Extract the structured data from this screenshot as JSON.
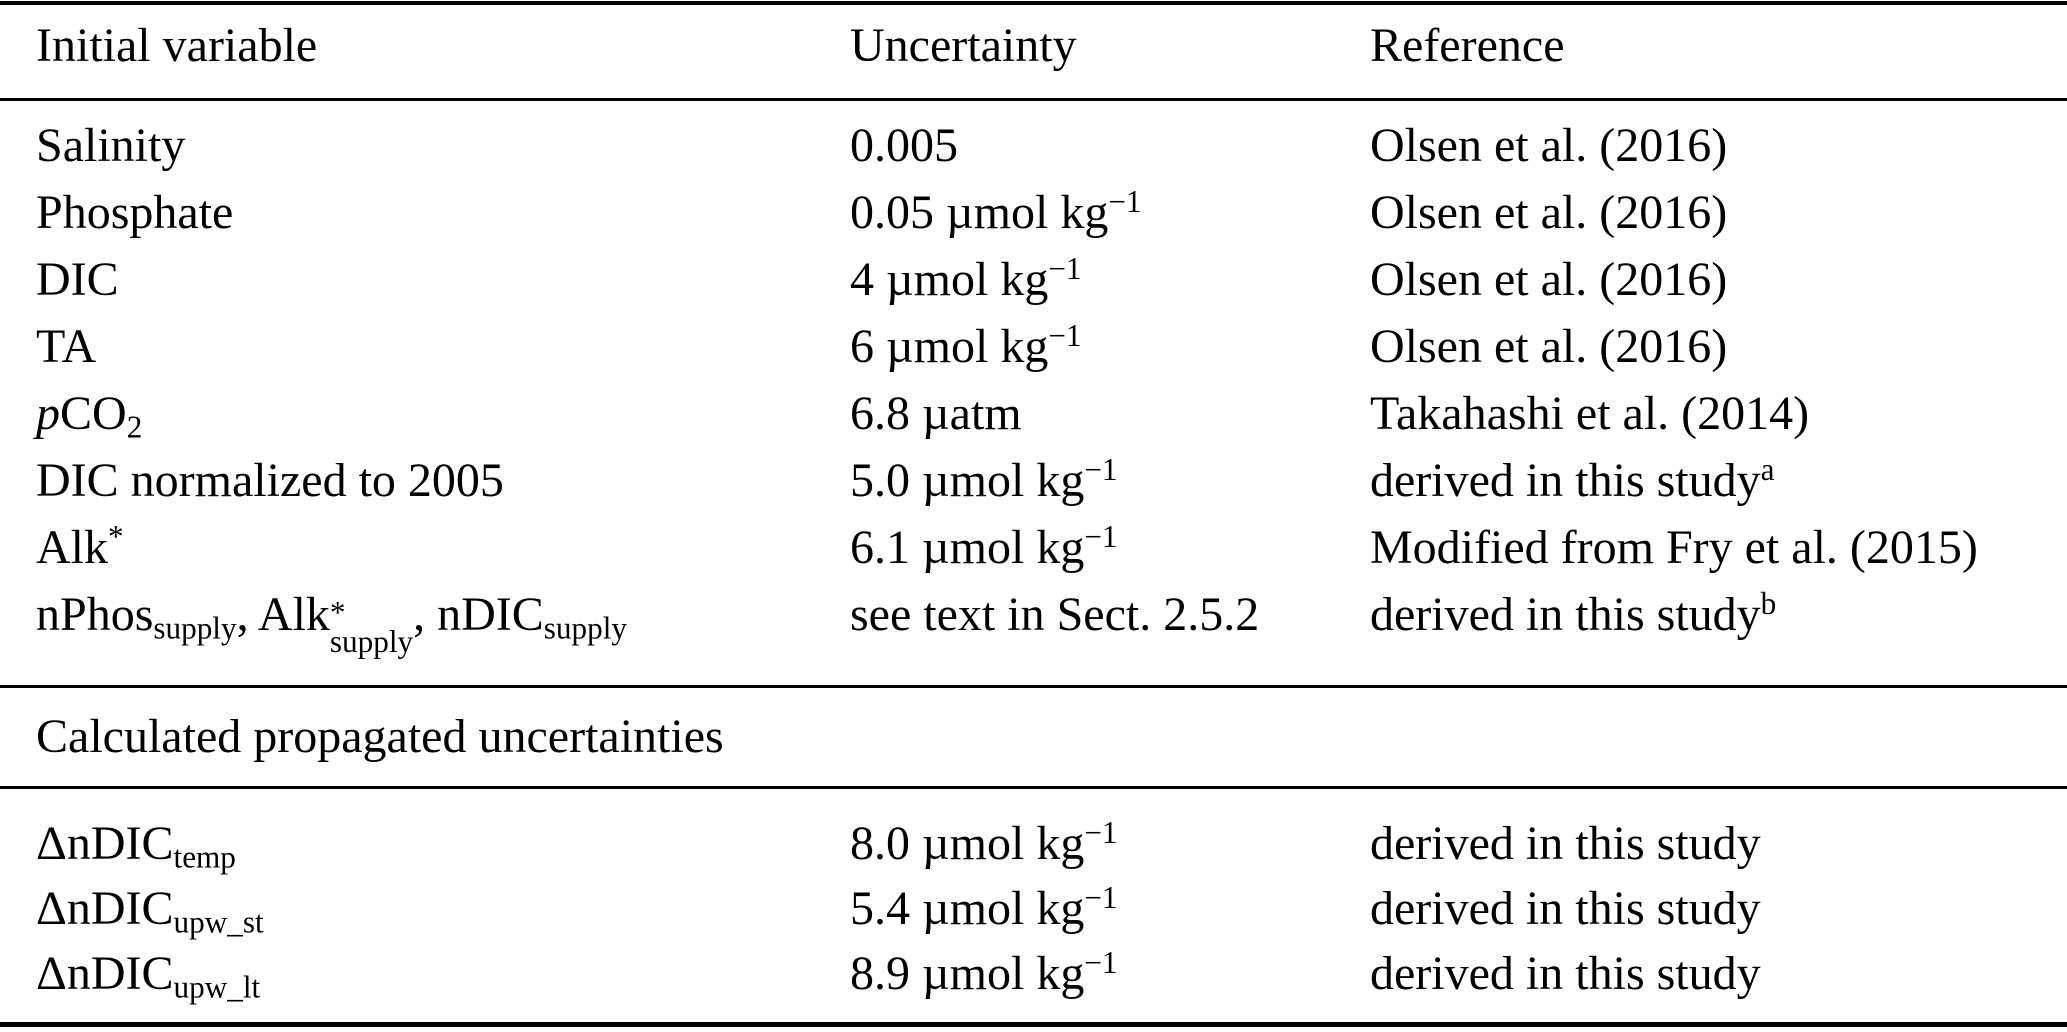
{
  "colors": {
    "background": "#ffffff",
    "text": "#000000",
    "rule": "#000000"
  },
  "table": {
    "columns": [
      {
        "label": "Initial variable"
      },
      {
        "label": "Uncertainty"
      },
      {
        "label": "Reference"
      }
    ],
    "sections": [
      {
        "name": "initial-variables",
        "header": null,
        "rows": [
          {
            "variable": [
              {
                "text": "Salinity"
              }
            ],
            "uncertainty": [
              {
                "text": "0.005"
              }
            ],
            "reference": [
              {
                "text": "Olsen et al. (2016)"
              }
            ]
          },
          {
            "variable": [
              {
                "text": "Phosphate"
              }
            ],
            "uncertainty": [
              {
                "text": "0.05 µmol kg"
              },
              {
                "text": "−1",
                "style": "sup"
              }
            ],
            "reference": [
              {
                "text": "Olsen et al. (2016)"
              }
            ]
          },
          {
            "variable": [
              {
                "text": "DIC"
              }
            ],
            "uncertainty": [
              {
                "text": "4 µmol kg"
              },
              {
                "text": "−1",
                "style": "sup"
              }
            ],
            "reference": [
              {
                "text": "Olsen et al. (2016)"
              }
            ]
          },
          {
            "variable": [
              {
                "text": "TA"
              }
            ],
            "uncertainty": [
              {
                "text": "6 µmol kg"
              },
              {
                "text": "−1",
                "style": "sup"
              }
            ],
            "reference": [
              {
                "text": "Olsen et al. (2016)"
              }
            ]
          },
          {
            "variable": [
              {
                "text": "p",
                "style": "italic"
              },
              {
                "text": "CO"
              },
              {
                "text": "2",
                "style": "sub"
              }
            ],
            "uncertainty": [
              {
                "text": "6.8 µatm"
              }
            ],
            "reference": [
              {
                "text": "Takahashi et al. (2014)"
              }
            ]
          },
          {
            "variable": [
              {
                "text": "DIC normalized to 2005"
              }
            ],
            "uncertainty": [
              {
                "text": "5.0 µmol kg"
              },
              {
                "text": "−1",
                "style": "sup"
              }
            ],
            "reference": [
              {
                "text": "derived in this study"
              },
              {
                "text": "a",
                "style": "sup"
              }
            ]
          },
          {
            "variable": [
              {
                "text": "Alk"
              },
              {
                "text": "*",
                "style": "sup"
              }
            ],
            "uncertainty": [
              {
                "text": "6.1 µmol kg"
              },
              {
                "text": "−1",
                "style": "sup"
              }
            ],
            "reference": [
              {
                "text": "Modified from Fry et al. (2015)"
              }
            ]
          },
          {
            "variable": [
              {
                "text": "nPhos"
              },
              {
                "text": "supply",
                "style": "sub"
              },
              {
                "text": ", Alk"
              },
              {
                "style": "supsub",
                "sup": "*",
                "sub": "supply"
              },
              {
                "text": ", nDIC"
              },
              {
                "text": "supply",
                "style": "sub"
              }
            ],
            "uncertainty": [
              {
                "text": "see text in Sect. 2.5.2"
              }
            ],
            "reference": [
              {
                "text": "derived in this study"
              },
              {
                "text": "b",
                "style": "sup"
              }
            ]
          }
        ]
      },
      {
        "name": "calculated-propagated-uncertainties",
        "header": "Calculated propagated uncertainties",
        "rows": [
          {
            "variable": [
              {
                "text": "ΔnDIC"
              },
              {
                "text": "temp",
                "style": "sub"
              }
            ],
            "uncertainty": [
              {
                "text": "8.0 µmol kg"
              },
              {
                "text": "−1",
                "style": "sup"
              }
            ],
            "reference": [
              {
                "text": "derived in this study"
              }
            ]
          },
          {
            "variable": [
              {
                "text": "ΔnDIC"
              },
              {
                "text": "upw_st",
                "style": "sub"
              }
            ],
            "uncertainty": [
              {
                "text": "5.4 µmol kg"
              },
              {
                "text": "−1",
                "style": "sup"
              }
            ],
            "reference": [
              {
                "text": "derived in this study"
              }
            ]
          },
          {
            "variable": [
              {
                "text": "ΔnDIC"
              },
              {
                "text": "upw_lt",
                "style": "sub"
              }
            ],
            "uncertainty": [
              {
                "text": "8.9 µmol kg"
              },
              {
                "text": "−1",
                "style": "sup"
              }
            ],
            "reference": [
              {
                "text": "derived in this study"
              }
            ]
          }
        ]
      }
    ]
  }
}
